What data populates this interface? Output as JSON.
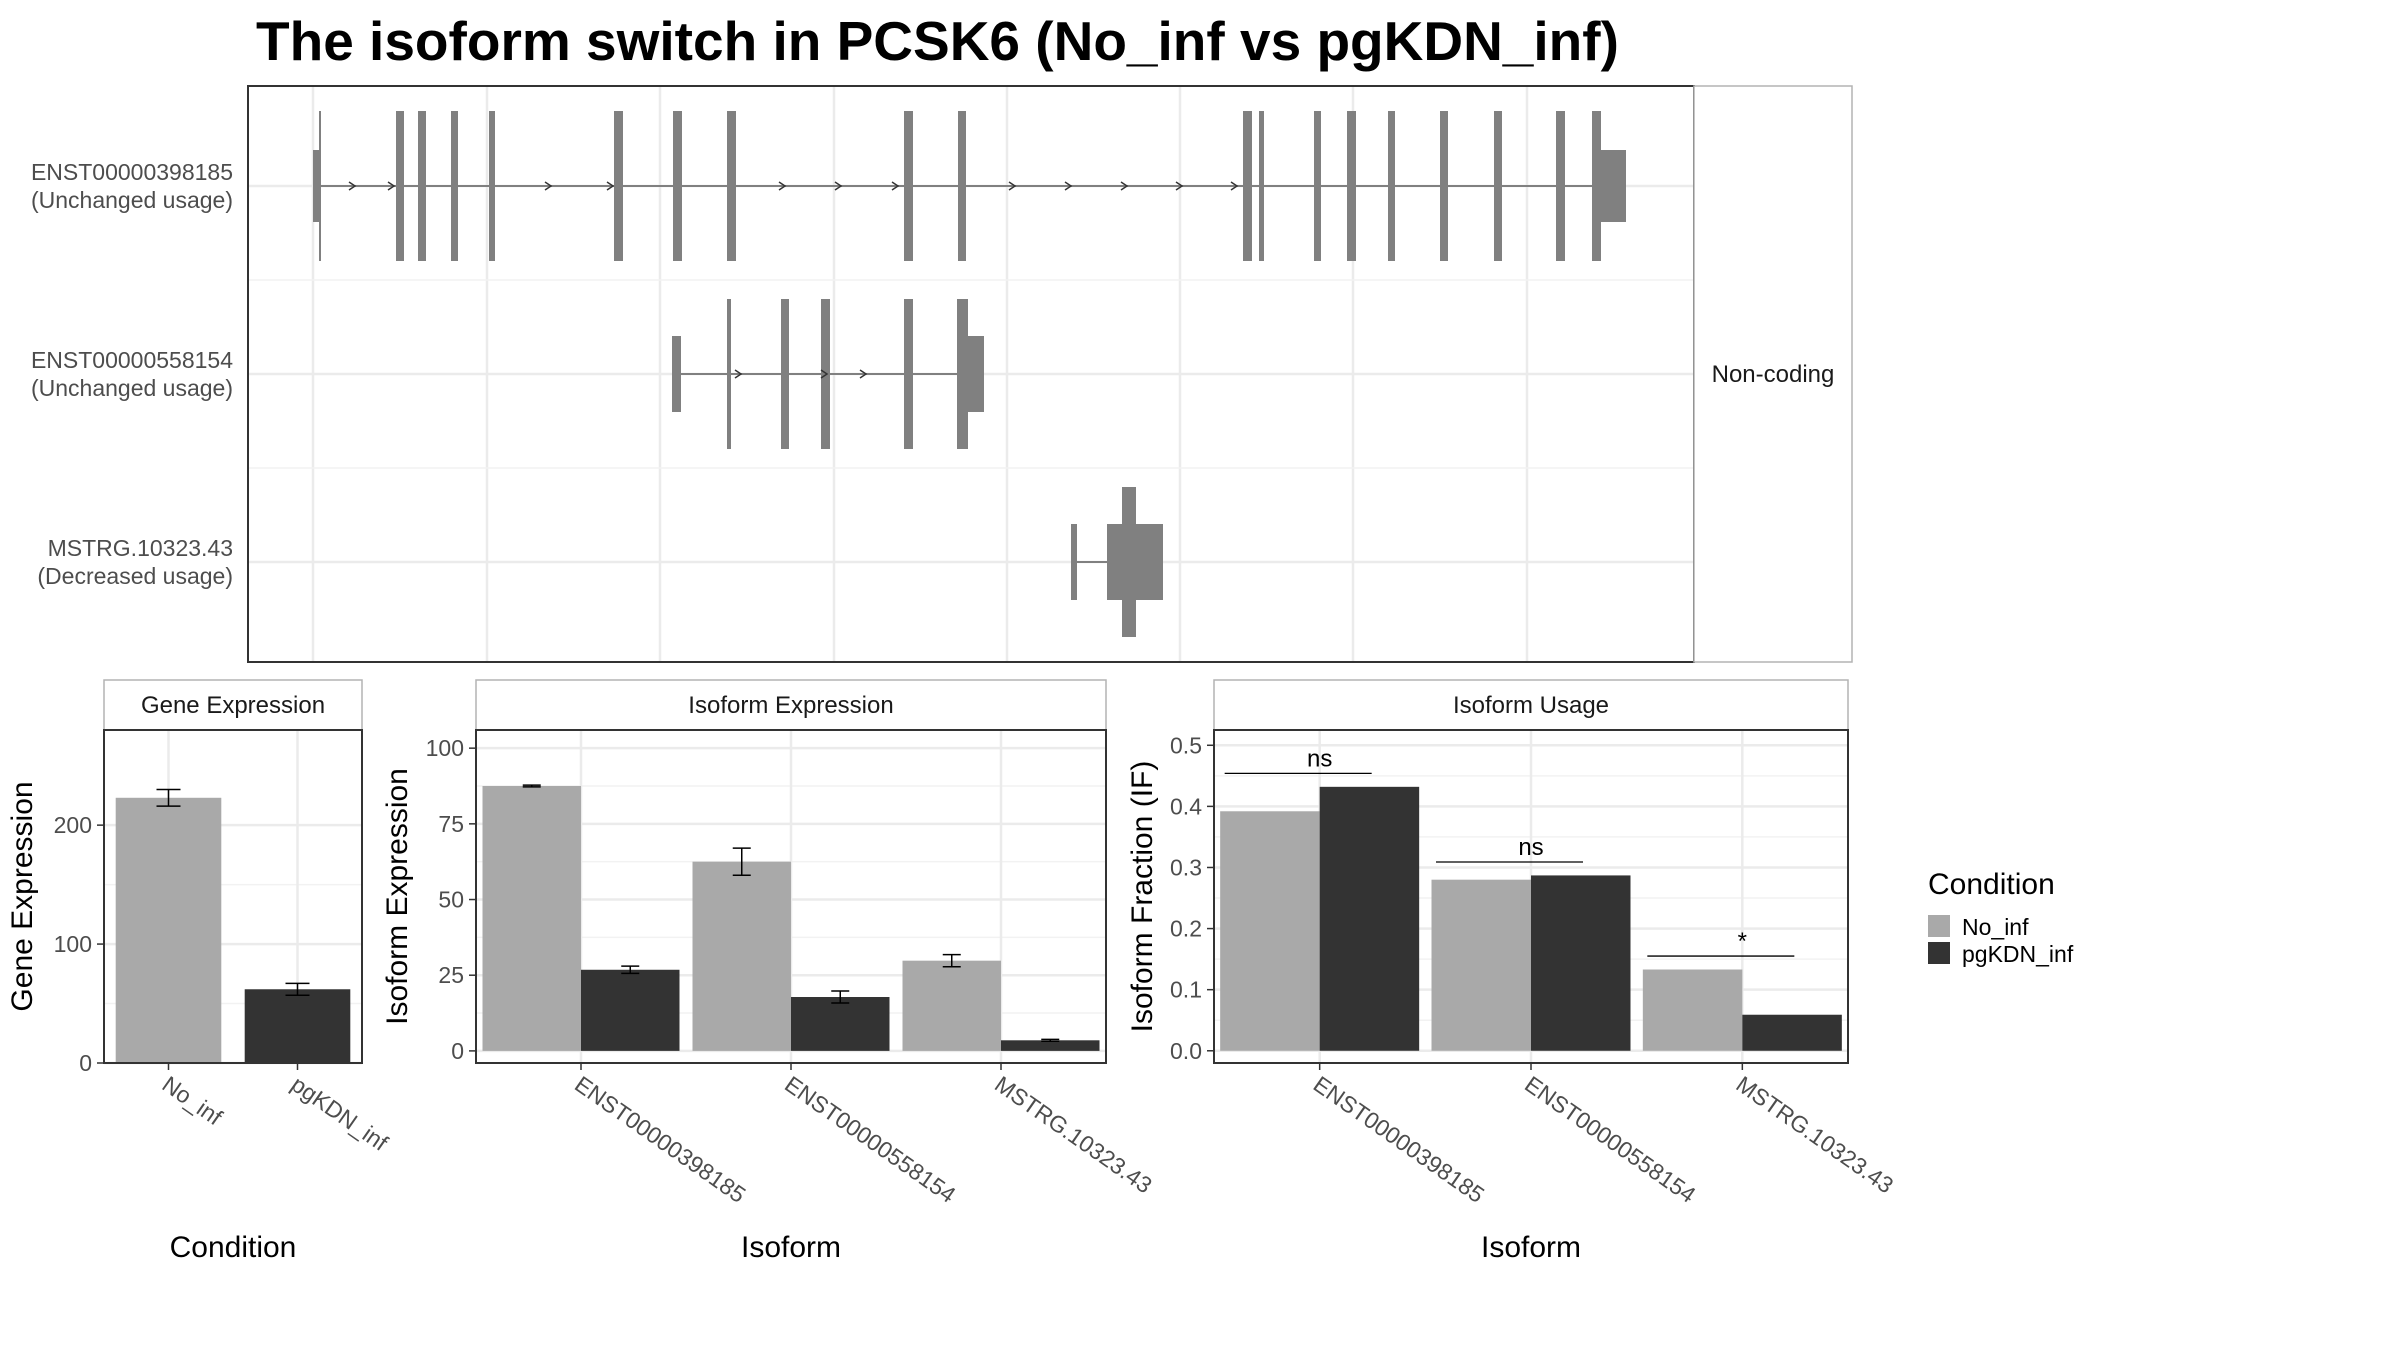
{
  "title": "The isoform switch in PCSK6 (No_inf vs pgKDN_inf)",
  "colors": {
    "no_inf": "#a9a9a9",
    "pgkdn_inf": "#333333",
    "structure": "#808080"
  },
  "chart_data": [
    {
      "type": "gene-structure",
      "panel_label": "Non-coding",
      "transcripts": [
        {
          "id": "ENST00000398185",
          "usage": "(Unchanged usage)"
        },
        {
          "id": "ENST00000558154",
          "usage": "(Unchanged usage)"
        },
        {
          "id": "MSTRG.10323.43",
          "usage": "(Decreased usage)"
        }
      ]
    },
    {
      "type": "bar",
      "strip": "Gene Expression",
      "xlabel": "Condition",
      "ylabel": "Gene Expression",
      "categories": [
        "No_inf",
        "pgKDN_inf"
      ],
      "values": [
        223,
        62
      ],
      "errors": [
        7,
        5
      ],
      "ylim": [
        0,
        280
      ],
      "yticks": [
        0,
        100,
        200
      ]
    },
    {
      "type": "bar",
      "strip": "Isoform Expression",
      "xlabel": "Isoform",
      "ylabel": "Isoform Expression",
      "categories": [
        "ENST00000398185",
        "ENST00000558154",
        "MSTRG.10323.43"
      ],
      "series": [
        {
          "name": "No_inf",
          "values": [
            87.5,
            62.5,
            29.8
          ],
          "errors": [
            0.3,
            4.5,
            2
          ]
        },
        {
          "name": "pgKDN_inf",
          "values": [
            26.8,
            17.8,
            3.5
          ],
          "errors": [
            1.2,
            2,
            0.3
          ]
        }
      ],
      "ylim": [
        -4,
        106
      ],
      "yticks": [
        0,
        25,
        50,
        75,
        100
      ]
    },
    {
      "type": "bar",
      "strip": "Isoform Usage",
      "xlabel": "Isoform",
      "ylabel": "Isoform Fraction (IF)",
      "categories": [
        "ENST00000398185",
        "ENST00000558154",
        "MSTRG.10323.43"
      ],
      "series": [
        {
          "name": "No_inf",
          "values": [
            0.392,
            0.28,
            0.133
          ]
        },
        {
          "name": "pgKDN_inf",
          "values": [
            0.432,
            0.287,
            0.059
          ]
        }
      ],
      "significance": [
        "ns",
        "ns",
        "*"
      ],
      "ylim": [
        -0.02,
        0.525
      ],
      "yticks": [
        0.0,
        0.1,
        0.2,
        0.3,
        0.4,
        0.5
      ]
    }
  ],
  "legend": {
    "title": "Condition",
    "items": [
      "No_inf",
      "pgKDN_inf"
    ]
  }
}
